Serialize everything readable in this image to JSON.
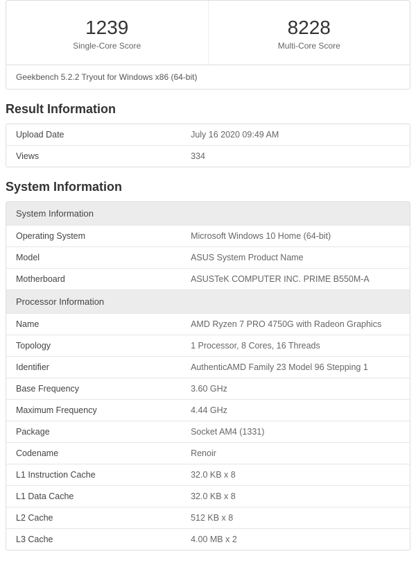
{
  "scores": {
    "single": {
      "value": "1239",
      "label": "Single-Core Score"
    },
    "multi": {
      "value": "8228",
      "label": "Multi-Core Score"
    }
  },
  "footnote": "Geekbench 5.2.2 Tryout for Windows x86 (64-bit)",
  "result_info": {
    "title": "Result Information",
    "rows": [
      {
        "label": "Upload Date",
        "value": "July 16 2020 09:49 AM"
      },
      {
        "label": "Views",
        "value": "334"
      }
    ]
  },
  "system_info": {
    "title": "System Information",
    "system_header": "System Information",
    "system_rows": [
      {
        "label": "Operating System",
        "value": "Microsoft Windows 10 Home (64-bit)"
      },
      {
        "label": "Model",
        "value": "ASUS System Product Name"
      },
      {
        "label": "Motherboard",
        "value": "ASUSTeK COMPUTER INC. PRIME B550M-A"
      }
    ],
    "processor_header": "Processor Information",
    "processor_rows": [
      {
        "label": "Name",
        "value": "AMD Ryzen 7 PRO 4750G with Radeon Graphics"
      },
      {
        "label": "Topology",
        "value": "1 Processor, 8 Cores, 16 Threads"
      },
      {
        "label": "Identifier",
        "value": "AuthenticAMD Family 23 Model 96 Stepping 1"
      },
      {
        "label": "Base Frequency",
        "value": "3.60 GHz"
      },
      {
        "label": "Maximum Frequency",
        "value": "4.44 GHz"
      },
      {
        "label": "Package",
        "value": "Socket AM4 (1331)"
      },
      {
        "label": "Codename",
        "value": "Renoir"
      },
      {
        "label": "L1 Instruction Cache",
        "value": "32.0 KB x 8"
      },
      {
        "label": "L1 Data Cache",
        "value": "32.0 KB x 8"
      },
      {
        "label": "L2 Cache",
        "value": "512 KB x 8"
      },
      {
        "label": "L3 Cache",
        "value": "4.00 MB x 2"
      }
    ]
  }
}
